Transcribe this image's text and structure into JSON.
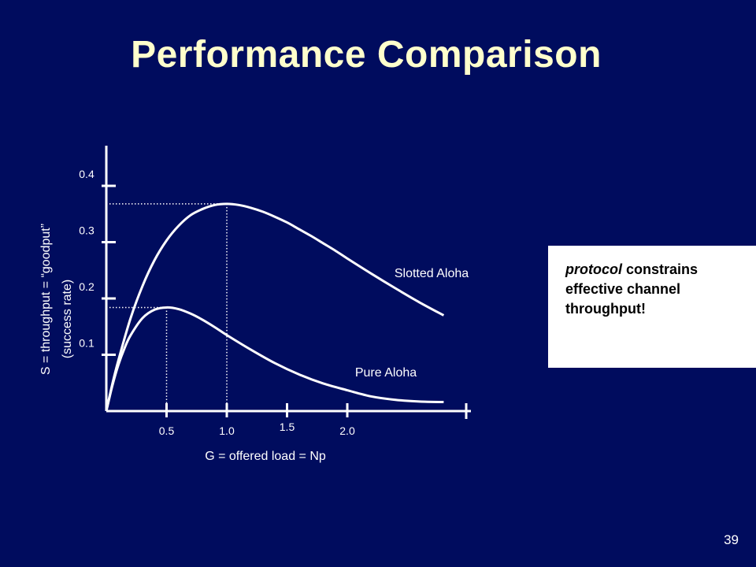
{
  "slide": {
    "title": "Performance Comparison",
    "page_number": "39"
  },
  "note": {
    "emphasis": "protocol",
    "text": " constrains effective channel throughput!"
  },
  "chart_data": {
    "type": "line",
    "xlabel": "G = offered load = Np",
    "ylabel_line1": "S = throughput = “goodput”",
    "ylabel_line2": "(success rate)",
    "x_ticks": [
      "0.5",
      "1.0",
      "1.5",
      "2.0"
    ],
    "y_ticks": [
      "0.1",
      "0.2",
      "0.3",
      "0.4"
    ],
    "xlim": [
      0,
      2.8
    ],
    "ylim": [
      0,
      0.45
    ],
    "grid": false,
    "series": [
      {
        "name": "Slotted Aloha",
        "x": [
          0,
          0.05,
          0.1,
          0.2,
          0.3,
          0.4,
          0.5,
          0.6,
          0.7,
          0.8,
          0.9,
          1.0,
          1.1,
          1.2,
          1.3,
          1.4,
          1.5,
          1.6,
          1.7,
          1.8,
          1.9,
          2.0,
          2.2,
          2.4,
          2.6,
          2.8
        ],
        "y": [
          0,
          0.048,
          0.09,
          0.164,
          0.222,
          0.268,
          0.303,
          0.329,
          0.348,
          0.359,
          0.366,
          0.368,
          0.366,
          0.361,
          0.354,
          0.345,
          0.335,
          0.323,
          0.311,
          0.298,
          0.285,
          0.271,
          0.244,
          0.218,
          0.193,
          0.17
        ]
      },
      {
        "name": "Pure Aloha",
        "x": [
          0,
          0.05,
          0.1,
          0.15,
          0.2,
          0.3,
          0.4,
          0.5,
          0.6,
          0.7,
          0.8,
          0.9,
          1.0,
          1.2,
          1.4,
          1.6,
          1.8,
          2.0,
          2.2,
          2.4,
          2.6,
          2.8
        ],
        "y": [
          0,
          0.045,
          0.082,
          0.111,
          0.134,
          0.165,
          0.18,
          0.184,
          0.181,
          0.173,
          0.162,
          0.149,
          0.135,
          0.109,
          0.085,
          0.065,
          0.049,
          0.037,
          0.026,
          0.02,
          0.017,
          0.016
        ]
      }
    ],
    "reference_lines": [
      {
        "x": 0.5,
        "y": 0.184
      },
      {
        "x": 1.0,
        "y": 0.368
      }
    ]
  }
}
